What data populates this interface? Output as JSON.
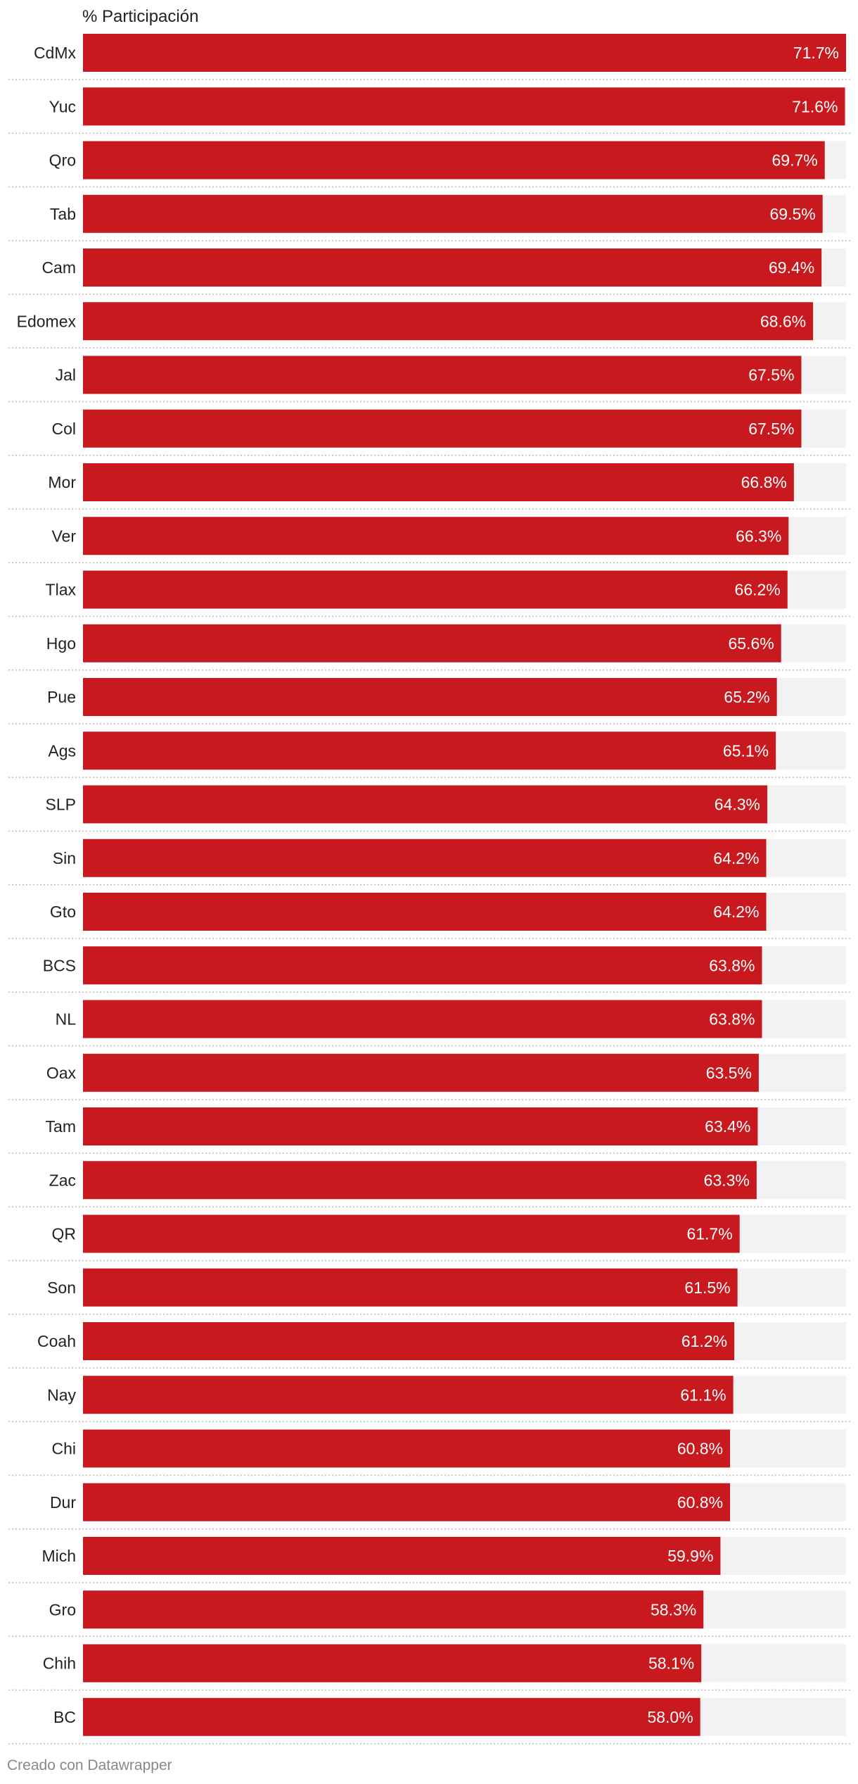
{
  "chart_data": {
    "type": "bar",
    "column_header": "% Participación",
    "max_value": 71.7,
    "categories": [
      "CdMx",
      "Yuc",
      "Qro",
      "Tab",
      "Cam",
      "Edomex",
      "Jal",
      "Col",
      "Mor",
      "Ver",
      "Tlax",
      "Hgo",
      "Pue",
      "Ags",
      "SLP",
      "Sin",
      "Gto",
      "BCS",
      "NL",
      "Oax",
      "Tam",
      "Zac",
      "QR",
      "Son",
      "Coah",
      "Nay",
      "Chi",
      "Dur",
      "Mich",
      "Gro",
      "Chih",
      "BC"
    ],
    "values": [
      71.7,
      71.6,
      69.7,
      69.5,
      69.4,
      68.6,
      67.5,
      67.5,
      66.8,
      66.3,
      66.2,
      65.6,
      65.2,
      65.1,
      64.3,
      64.2,
      64.2,
      63.8,
      63.8,
      63.5,
      63.4,
      63.3,
      61.7,
      61.5,
      61.2,
      61.1,
      60.8,
      60.8,
      59.9,
      58.3,
      58.1,
      58.0
    ],
    "value_labels": [
      "71.7%",
      "71.6%",
      "69.7%",
      "69.5%",
      "69.4%",
      "68.6%",
      "67.5%",
      "67.5%",
      "66.8%",
      "66.3%",
      "66.2%",
      "65.6%",
      "65.2%",
      "65.1%",
      "64.3%",
      "64.2%",
      "64.2%",
      "63.8%",
      "63.8%",
      "63.5%",
      "63.4%",
      "63.3%",
      "61.7%",
      "61.5%",
      "61.2%",
      "61.1%",
      "60.8%",
      "60.8%",
      "59.9%",
      "58.3%",
      "58.1%",
      "58.0%"
    ],
    "bar_color": "#c8191e",
    "track_color": "#f2f2f2"
  },
  "footer": {
    "credit": "Creado con Datawrapper"
  }
}
